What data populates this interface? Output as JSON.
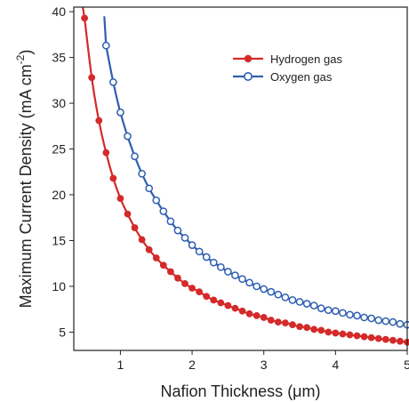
{
  "chart_data": {
    "type": "line",
    "xlabel": "Nafion Thickness (μm)",
    "ylabel": "Maximum Current Density (mA cm",
    "ylabel_superscript": "-2",
    "ylabel_close": ")",
    "xlim": [
      0.35,
      5.0
    ],
    "ylim": [
      3.0,
      40.5
    ],
    "xticks": [
      1,
      2,
      3,
      4,
      5
    ],
    "yticks": [
      5,
      10,
      15,
      20,
      25,
      30,
      35,
      40
    ],
    "legend_position": "top-right",
    "grid": false,
    "series": [
      {
        "name": "Hydrogen gas",
        "color": "#d42a2a",
        "marker": "filled-circle",
        "x": [
          0.5,
          0.6,
          0.7,
          0.8,
          0.9,
          1.0,
          1.1,
          1.2,
          1.3,
          1.4,
          1.5,
          1.6,
          1.7,
          1.8,
          1.9,
          2.0,
          2.1,
          2.2,
          2.3,
          2.4,
          2.5,
          2.6,
          2.7,
          2.8,
          2.9,
          3.0,
          3.1,
          3.2,
          3.3,
          3.4,
          3.5,
          3.6,
          3.7,
          3.8,
          3.9,
          4.0,
          4.1,
          4.2,
          4.3,
          4.4,
          4.5,
          4.6,
          4.7,
          4.8,
          4.9,
          5.0
        ],
        "y": [
          39.3,
          32.8,
          28.1,
          24.6,
          21.8,
          19.6,
          17.9,
          16.4,
          15.1,
          14.0,
          13.1,
          12.3,
          11.6,
          10.9,
          10.3,
          9.8,
          9.4,
          8.9,
          8.5,
          8.2,
          7.9,
          7.6,
          7.3,
          7.0,
          6.8,
          6.6,
          6.3,
          6.1,
          6.0,
          5.8,
          5.6,
          5.5,
          5.3,
          5.2,
          5.0,
          4.9,
          4.8,
          4.7,
          4.6,
          4.5,
          4.4,
          4.3,
          4.2,
          4.1,
          4.0,
          3.9
        ]
      },
      {
        "name": "Oxygen gas",
        "color": "#2f5fb0",
        "marker": "open-circle",
        "x": [
          0.8,
          0.9,
          1.0,
          1.1,
          1.2,
          1.3,
          1.4,
          1.5,
          1.6,
          1.7,
          1.8,
          1.9,
          2.0,
          2.1,
          2.2,
          2.3,
          2.4,
          2.5,
          2.6,
          2.7,
          2.8,
          2.9,
          3.0,
          3.1,
          3.2,
          3.3,
          3.4,
          3.5,
          3.6,
          3.7,
          3.8,
          3.9,
          4.0,
          4.1,
          4.2,
          4.3,
          4.4,
          4.5,
          4.6,
          4.7,
          4.8,
          4.9,
          5.0
        ],
        "y": [
          36.3,
          32.3,
          29.0,
          26.4,
          24.2,
          22.3,
          20.7,
          19.4,
          18.2,
          17.1,
          16.1,
          15.3,
          14.5,
          13.8,
          13.2,
          12.6,
          12.1,
          11.6,
          11.2,
          10.8,
          10.4,
          10.0,
          9.7,
          9.4,
          9.1,
          8.8,
          8.5,
          8.3,
          8.1,
          7.9,
          7.6,
          7.4,
          7.3,
          7.1,
          6.9,
          6.8,
          6.6,
          6.5,
          6.3,
          6.2,
          6.1,
          5.9,
          5.8
        ]
      }
    ]
  }
}
